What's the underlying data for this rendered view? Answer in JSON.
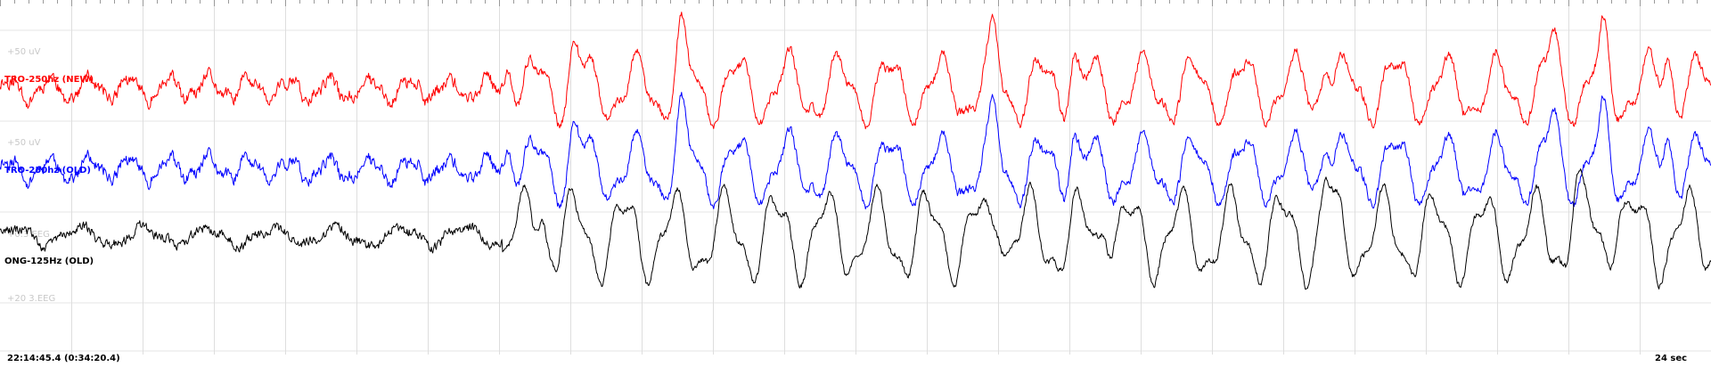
{
  "footer": {
    "timestamp": "22:14:45.4 (0:34:20.4)",
    "duration": "24 sec"
  },
  "chart_data": {
    "type": "line",
    "xlabel": "",
    "ylabel": "",
    "x_unit": "sec",
    "duration_sec": 24,
    "grid": true,
    "legend": "none",
    "scale_labels": [
      "+50 uV",
      "+50 uV",
      "+0.3 EEG",
      "+20 3.EEG"
    ],
    "onset_sec": 7.05,
    "series": [
      {
        "name": "TRO-250hz (NEW)",
        "color": "#ff0000",
        "pre_onset": {
          "cycle_sec": 0.56,
          "amplitude": 0.22,
          "noise": 0.22
        },
        "post_onset": {
          "cycle_sec": 0.71,
          "amplitude": 0.62,
          "noise": 0.16
        },
        "burst_peaks_sec": [
          7.15,
          8.05,
          9.55,
          13.95,
          15.05,
          18.6,
          21.8,
          22.5,
          23.4
        ]
      },
      {
        "name": "TRO-250hz (OLD)",
        "color": "#0000ff",
        "pre_onset": {
          "cycle_sec": 0.56,
          "amplitude": 0.22,
          "noise": 0.22
        },
        "post_onset": {
          "cycle_sec": 0.71,
          "amplitude": 0.62,
          "noise": 0.16
        },
        "burst_peaks_sec": [
          7.15,
          8.05,
          9.55,
          13.95,
          15.05,
          18.6,
          21.8,
          22.5,
          23.4
        ]
      },
      {
        "name": "ONG-125Hz (OLD)",
        "color": "#000000",
        "pre_onset": {
          "cycle_sec": 0.9,
          "amplitude": 0.18,
          "noise": 0.18
        },
        "post_onset": {
          "cycle_sec": 0.71,
          "amplitude": 0.85,
          "noise": 0.12
        },
        "burst_peaks_sec": [
          7.6,
          14.0,
          15.5,
          18.6,
          22.1,
          22.7
        ]
      }
    ]
  }
}
